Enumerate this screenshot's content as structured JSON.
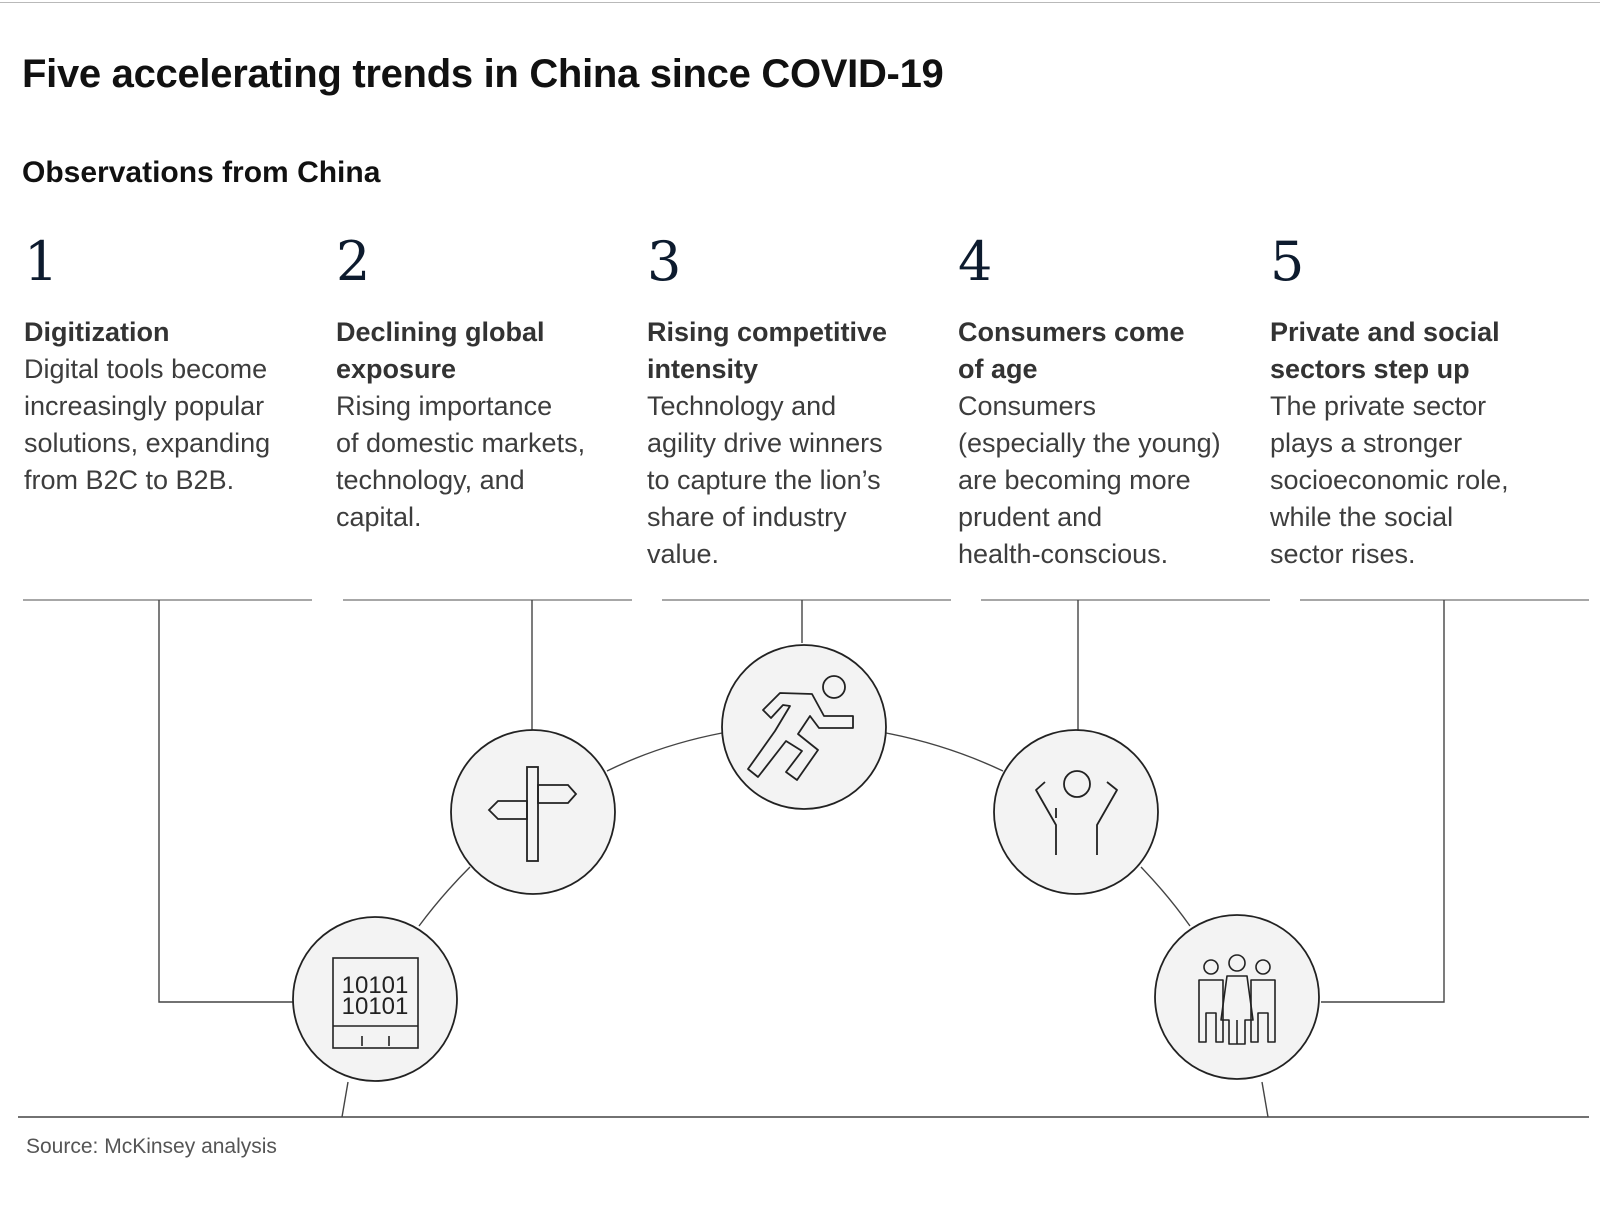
{
  "title": "Five accelerating trends in China since COVID-19",
  "subtitle": "Observations from China",
  "trends": [
    {
      "number": "1",
      "heading": "Digitization",
      "description": "Digital tools become\nincreasingly popular\nsolutions, expanding\nfrom B2C to B2B.",
      "icon": "binary-tablet-icon"
    },
    {
      "number": "2",
      "heading": "Declining global\nexposure",
      "description": "Rising importance\nof domestic markets,\ntechnology, and\ncapital.",
      "icon": "signpost-icon"
    },
    {
      "number": "3",
      "heading": "Rising competitive\nintensity",
      "description": "Technology and\nagility drive winners\nto capture the lion’s\nshare of industry\nvalue.",
      "icon": "runner-icon"
    },
    {
      "number": "4",
      "heading": "Consumers come\nof age",
      "description": "Consumers\n(especially the young)\nare becoming more\nprudent and\nhealth-conscious.",
      "icon": "raised-arms-person-icon"
    },
    {
      "number": "5",
      "heading": "Private and social\nsectors step up",
      "description": "The private sector\nplays a stronger\nsocioeconomic role,\nwhile the social\nsector rises.",
      "icon": "group-of-people-icon"
    }
  ],
  "binary_icon_text": [
    "10101",
    "10101"
  ],
  "source": "Source: McKinsey analysis",
  "colors": {
    "line": "#333333",
    "circle_fill": "#f3f3f3",
    "number": "#0d1b2e"
  }
}
